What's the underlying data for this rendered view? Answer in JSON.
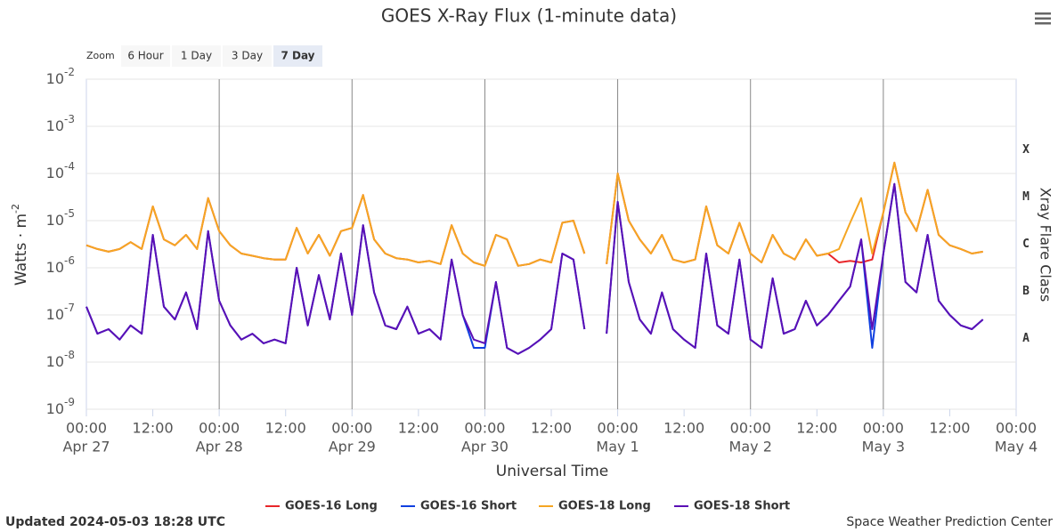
{
  "chart_data": {
    "type": "line",
    "title": "GOES X-Ray Flux (1-minute data)",
    "zoom_label": "Zoom",
    "zoom_buttons": [
      "6 Hour",
      "1 Day",
      "3 Day",
      "7 Day"
    ],
    "zoom_selected": 3,
    "xlabel": "Universal Time",
    "ylabel": "Watts · m",
    "ylabel_exp": "-2",
    "y2label": "Xray Flare Class",
    "log_y": true,
    "grid": true,
    "legend": "bottom",
    "footer_left": "Updated 2024-05-03 18:28 UTC",
    "footer_right": "Space Weather Prediction Center",
    "xlim": [
      "Apr 27 00:00",
      "May 4 00:00"
    ],
    "xticks": [
      {
        "value": "Apr 27 00:00",
        "label": "00:00",
        "date": "Apr 27"
      },
      {
        "value": "Apr 27 12:00",
        "label": "12:00"
      },
      {
        "value": "Apr 28 00:00",
        "label": "00:00",
        "date": "Apr 28"
      },
      {
        "value": "Apr 28 12:00",
        "label": "12:00"
      },
      {
        "value": "Apr 29 00:00",
        "label": "00:00",
        "date": "Apr 29"
      },
      {
        "value": "Apr 29 12:00",
        "label": "12:00"
      },
      {
        "value": "Apr 30 00:00",
        "label": "00:00",
        "date": "Apr 30"
      },
      {
        "value": "Apr 30 12:00",
        "label": "12:00"
      },
      {
        "value": "May 1 00:00",
        "label": "00:00",
        "date": "May 1"
      },
      {
        "value": "May 1 12:00",
        "label": "12:00"
      },
      {
        "value": "May 2 00:00",
        "label": "00:00",
        "date": "May 2"
      },
      {
        "value": "May 2 12:00",
        "label": "12:00"
      },
      {
        "value": "May 3 00:00",
        "label": "00:00",
        "date": "May 3"
      },
      {
        "value": "May 3 12:00",
        "label": "12:00"
      },
      {
        "value": "May 4 00:00",
        "label": "00:00",
        "date": "May 4"
      }
    ],
    "ylim": [
      1e-09,
      0.01
    ],
    "yticks": [
      {
        "value": 1e-09,
        "label": "10",
        "exp": "-9"
      },
      {
        "value": 1e-08,
        "label": "10",
        "exp": "-8"
      },
      {
        "value": 1e-07,
        "label": "10",
        "exp": "-7"
      },
      {
        "value": 1e-06,
        "label": "10",
        "exp": "-6"
      },
      {
        "value": 1e-05,
        "label": "10",
        "exp": "-5"
      },
      {
        "value": 0.0001,
        "label": "10",
        "exp": "-4"
      },
      {
        "value": 0.001,
        "label": "10",
        "exp": "-3"
      },
      {
        "value": 0.01,
        "label": "10",
        "exp": "-2"
      }
    ],
    "flare_classes": [
      {
        "label": "A",
        "value": 1e-08
      },
      {
        "label": "B",
        "value": 1e-07
      },
      {
        "label": "C",
        "value": 1e-06
      },
      {
        "label": "M",
        "value": 1e-05
      },
      {
        "label": "X",
        "value": 0.0001
      }
    ],
    "x": [
      "Apr 27 00:00",
      "Apr 27 02:00",
      "Apr 27 04:00",
      "Apr 27 06:00",
      "Apr 27 08:00",
      "Apr 27 10:00",
      "Apr 27 12:00",
      "Apr 27 14:00",
      "Apr 27 16:00",
      "Apr 27 18:00",
      "Apr 27 20:00",
      "Apr 27 22:00",
      "Apr 28 00:00",
      "Apr 28 02:00",
      "Apr 28 04:00",
      "Apr 28 06:00",
      "Apr 28 08:00",
      "Apr 28 10:00",
      "Apr 28 12:00",
      "Apr 28 14:00",
      "Apr 28 16:00",
      "Apr 28 18:00",
      "Apr 28 20:00",
      "Apr 28 22:00",
      "Apr 29 00:00",
      "Apr 29 02:00",
      "Apr 29 04:00",
      "Apr 29 06:00",
      "Apr 29 08:00",
      "Apr 29 10:00",
      "Apr 29 12:00",
      "Apr 29 14:00",
      "Apr 29 16:00",
      "Apr 29 18:00",
      "Apr 29 20:00",
      "Apr 29 22:00",
      "Apr 30 00:00",
      "Apr 30 02:00",
      "Apr 30 04:00",
      "Apr 30 06:00",
      "Apr 30 08:00",
      "Apr 30 10:00",
      "Apr 30 12:00",
      "Apr 30 14:00",
      "Apr 30 16:00",
      "Apr 30 18:00",
      "Apr 30 20:00",
      "Apr 30 22:00",
      "May 1 00:00",
      "May 1 02:00",
      "May 1 04:00",
      "May 1 06:00",
      "May 1 08:00",
      "May 1 10:00",
      "May 1 12:00",
      "May 1 14:00",
      "May 1 16:00",
      "May 1 18:00",
      "May 1 20:00",
      "May 1 22:00",
      "May 2 00:00",
      "May 2 02:00",
      "May 2 04:00",
      "May 2 06:00",
      "May 2 08:00",
      "May 2 10:00",
      "May 2 12:00",
      "May 2 14:00",
      "May 2 16:00",
      "May 2 18:00",
      "May 2 20:00",
      "May 2 22:00",
      "May 3 00:00",
      "May 3 02:00",
      "May 3 04:00",
      "May 3 06:00",
      "May 3 08:00",
      "May 3 10:00",
      "May 3 12:00",
      "May 3 14:00",
      "May 3 16:00",
      "May 3 18:00"
    ],
    "series": [
      {
        "name": "GOES-16 Long",
        "color": "#e8262a",
        "values": [
          3e-06,
          2.5e-06,
          2.2e-06,
          2.5e-06,
          3.5e-06,
          2.5e-06,
          2e-05,
          4e-06,
          3e-06,
          5e-06,
          2.5e-06,
          3e-05,
          6e-06,
          3e-06,
          2e-06,
          1.8e-06,
          1.6e-06,
          1.5e-06,
          1.5e-06,
          7e-06,
          2e-06,
          5e-06,
          1.8e-06,
          6e-06,
          7e-06,
          3.5e-05,
          4e-06,
          2e-06,
          1.6e-06,
          1.5e-06,
          1.3e-06,
          1.4e-06,
          1.2e-06,
          8e-06,
          2e-06,
          1.3e-06,
          1.1e-06,
          5e-06,
          4e-06,
          1.1e-06,
          1.2e-06,
          1.5e-06,
          1.3e-06,
          9e-06,
          1e-05,
          2e-06,
          null,
          1.2e-06,
          0.0001,
          1e-05,
          4e-06,
          2e-06,
          5e-06,
          1.5e-06,
          1.3e-06,
          1.5e-06,
          2e-05,
          3e-06,
          2e-06,
          9e-06,
          2e-06,
          1.3e-06,
          5e-06,
          2e-06,
          1.5e-06,
          4e-06,
          1.8e-06,
          2e-06,
          1.3e-06,
          1.4e-06,
          1.3e-06,
          1.5e-06,
          1.5e-05,
          0.00017,
          1.5e-05,
          6e-06,
          4.5e-05,
          5e-06,
          3e-06,
          2.5e-06,
          2e-06,
          2.2e-06
        ]
      },
      {
        "name": "GOES-16 Short",
        "color": "#1040e0",
        "values": [
          1.5e-07,
          4e-08,
          5e-08,
          3e-08,
          6e-08,
          4e-08,
          5e-06,
          1.5e-07,
          8e-08,
          3e-07,
          5e-08,
          6e-06,
          2e-07,
          6e-08,
          3e-08,
          4e-08,
          2.5e-08,
          3e-08,
          2.5e-08,
          1e-06,
          6e-08,
          7e-07,
          8e-08,
          2e-06,
          1e-07,
          8e-06,
          3e-07,
          6e-08,
          5e-08,
          1.5e-07,
          4e-08,
          5e-08,
          3e-08,
          1.5e-06,
          1e-07,
          2e-08,
          2e-08,
          5e-07,
          2e-08,
          1.5e-08,
          2e-08,
          3e-08,
          5e-08,
          2e-06,
          1.5e-06,
          5e-08,
          null,
          4e-08,
          2.5e-05,
          5e-07,
          8e-08,
          4e-08,
          3e-07,
          5e-08,
          3e-08,
          2e-08,
          2e-06,
          6e-08,
          4e-08,
          1.5e-06,
          3e-08,
          2e-08,
          6e-07,
          4e-08,
          5e-08,
          2e-07,
          6e-08,
          1e-07,
          2e-07,
          4e-07,
          4e-06,
          2e-08,
          2e-06,
          6e-05,
          5e-07,
          3e-07,
          5e-06,
          2e-07,
          1e-07,
          6e-08,
          5e-08,
          8e-08
        ]
      },
      {
        "name": "GOES-18 Long",
        "color": "#f5a623",
        "values": [
          3e-06,
          2.5e-06,
          2.2e-06,
          2.5e-06,
          3.5e-06,
          2.5e-06,
          2e-05,
          4e-06,
          3e-06,
          5e-06,
          2.5e-06,
          3e-05,
          6e-06,
          3e-06,
          2e-06,
          1.8e-06,
          1.6e-06,
          1.5e-06,
          1.5e-06,
          7e-06,
          2e-06,
          5e-06,
          1.8e-06,
          6e-06,
          7e-06,
          3.5e-05,
          4e-06,
          2e-06,
          1.6e-06,
          1.5e-06,
          1.3e-06,
          1.4e-06,
          1.2e-06,
          8e-06,
          2e-06,
          1.3e-06,
          1.1e-06,
          5e-06,
          4e-06,
          1.1e-06,
          1.2e-06,
          1.5e-06,
          1.3e-06,
          9e-06,
          1e-05,
          2e-06,
          null,
          1.2e-06,
          0.0001,
          1e-05,
          4e-06,
          2e-06,
          5e-06,
          1.5e-06,
          1.3e-06,
          1.5e-06,
          2e-05,
          3e-06,
          2e-06,
          9e-06,
          2e-06,
          1.3e-06,
          5e-06,
          2e-06,
          1.5e-06,
          4e-06,
          1.8e-06,
          2e-06,
          2.5e-06,
          9e-06,
          3e-05,
          2e-06,
          1.5e-05,
          0.00017,
          1.5e-05,
          6e-06,
          4.5e-05,
          5e-06,
          3e-06,
          2.5e-06,
          2e-06,
          2.2e-06
        ]
      },
      {
        "name": "GOES-18 Short",
        "color": "#5b0fb5",
        "values": [
          1.5e-07,
          4e-08,
          5e-08,
          3e-08,
          6e-08,
          4e-08,
          5e-06,
          1.5e-07,
          8e-08,
          3e-07,
          5e-08,
          6e-06,
          2e-07,
          6e-08,
          3e-08,
          4e-08,
          2.5e-08,
          3e-08,
          2.5e-08,
          1e-06,
          6e-08,
          7e-07,
          8e-08,
          2e-06,
          1e-07,
          8e-06,
          3e-07,
          6e-08,
          5e-08,
          1.5e-07,
          4e-08,
          5e-08,
          3e-08,
          1.5e-06,
          1e-07,
          3e-08,
          2.5e-08,
          5e-07,
          2e-08,
          1.5e-08,
          2e-08,
          3e-08,
          5e-08,
          2e-06,
          1.5e-06,
          5e-08,
          null,
          4e-08,
          2.5e-05,
          5e-07,
          8e-08,
          4e-08,
          3e-07,
          5e-08,
          3e-08,
          2e-08,
          2e-06,
          6e-08,
          4e-08,
          1.5e-06,
          3e-08,
          2e-08,
          6e-07,
          4e-08,
          5e-08,
          2e-07,
          6e-08,
          1e-07,
          2e-07,
          4e-07,
          4e-06,
          5e-08,
          2e-06,
          6e-05,
          5e-07,
          3e-07,
          5e-06,
          2e-07,
          1e-07,
          6e-08,
          5e-08,
          8e-08
        ]
      }
    ]
  }
}
